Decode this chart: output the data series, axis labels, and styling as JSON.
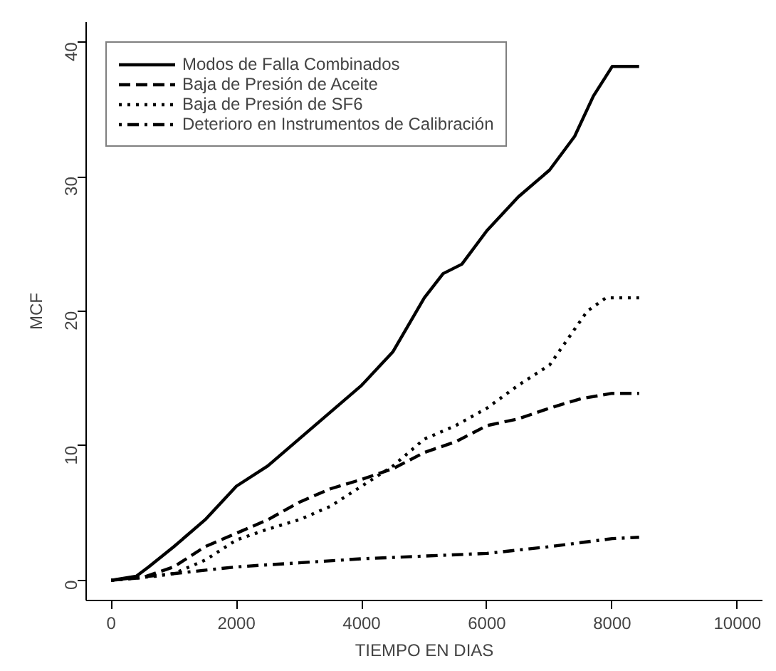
{
  "chart_data": {
    "type": "line",
    "xlabel": "TIEMPO EN DIAS",
    "ylabel": "MCF",
    "xlim": [
      -400,
      10400
    ],
    "ylim": [
      -1.5,
      41.5
    ],
    "xticks": [
      0,
      2000,
      4000,
      6000,
      8000,
      10000
    ],
    "yticks": [
      0,
      10,
      20,
      30,
      40
    ],
    "grid": false,
    "legend": "top left",
    "marker": "none",
    "series": [
      {
        "name": "Modos de Falla Combinados",
        "color": "#000000",
        "line_style": "solid",
        "x": [
          0,
          400,
          600,
          1000,
          1500,
          2000,
          2500,
          3000,
          3500,
          4000,
          4500,
          5000,
          5300,
          5600,
          6000,
          6500,
          7000,
          7400,
          7700,
          8000,
          8430
        ],
        "values": [
          0,
          0.3,
          1,
          2.5,
          4.5,
          7,
          8.5,
          10.5,
          12.5,
          14.5,
          17,
          21,
          22.8,
          23.5,
          26,
          28.5,
          30.5,
          33,
          36,
          38.2,
          38.2
        ]
      },
      {
        "name": "Baja de Presión de Aceite",
        "color": "#000000",
        "line_style": "dashed",
        "x": [
          0,
          500,
          1000,
          1500,
          2000,
          2500,
          3000,
          3500,
          4000,
          4500,
          5000,
          5500,
          6000,
          6500,
          7000,
          7500,
          8000,
          8430
        ],
        "values": [
          0,
          0.2,
          1,
          2.5,
          3.5,
          4.5,
          5.8,
          6.8,
          7.5,
          8.3,
          9.5,
          10.3,
          11.5,
          12,
          12.8,
          13.5,
          13.9,
          13.9
        ]
      },
      {
        "name": "Baja de Presión de SF6",
        "color": "#000000",
        "line_style": "dotted",
        "x": [
          0,
          700,
          1000,
          1500,
          2000,
          2500,
          3000,
          3500,
          4000,
          4500,
          5000,
          5500,
          6000,
          6500,
          7000,
          7300,
          7600,
          7900,
          8430
        ],
        "values": [
          0,
          0.3,
          0.5,
          1.5,
          3,
          3.8,
          4.5,
          5.5,
          7,
          8.5,
          10.5,
          11.5,
          12.8,
          14.5,
          16,
          18,
          20,
          21,
          21
        ]
      },
      {
        "name": "Deterioro en Instrumentos de Calibración",
        "color": "#000000",
        "line_style": "dashdot",
        "x": [
          0,
          1000,
          2000,
          3000,
          4000,
          5000,
          6000,
          7000,
          7500,
          8000,
          8430
        ],
        "values": [
          0,
          0.5,
          1,
          1.3,
          1.6,
          1.8,
          2,
          2.5,
          2.8,
          3.1,
          3.2
        ]
      }
    ]
  }
}
